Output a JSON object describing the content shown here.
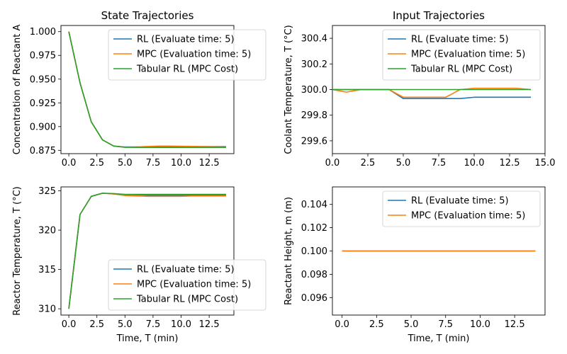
{
  "colors": {
    "rl": "#1f77b4",
    "mpc": "#ff7f0e",
    "tab": "#2ca02c"
  },
  "chart_data": [
    {
      "type": "line",
      "title": "State Trajectories",
      "xlabel": "",
      "ylabel": "Concentration of Reactant A",
      "xlim": [
        -0.7,
        14.7
      ],
      "ylim": [
        0.8715,
        1.0065
      ],
      "xticks": [
        0,
        2.5,
        5,
        7.5,
        10,
        12.5
      ],
      "xtick_labels": [
        "0.0",
        "2.5",
        "5.0",
        "7.5",
        "10.0",
        "12.5"
      ],
      "yticks": [
        0.875,
        0.9,
        0.925,
        0.95,
        0.975,
        1.0
      ],
      "ytick_labels": [
        "0.875",
        "0.900",
        "0.925",
        "0.950",
        "0.975",
        "1.000"
      ],
      "legend": "top-right",
      "x": [
        0,
        1,
        2,
        3,
        4,
        5,
        6,
        7,
        8,
        9,
        10,
        11,
        12,
        13,
        14
      ],
      "series": [
        {
          "name": "RL (Evaluate time: 5)",
          "color": "rl",
          "values": [
            1.0,
            0.946,
            0.905,
            0.886,
            0.8795,
            0.8785,
            0.8785,
            0.8787,
            0.8789,
            0.8789,
            0.8789,
            0.8789,
            0.8789,
            0.8789,
            0.8789
          ]
        },
        {
          "name": "MPC (Evaluation time: 5)",
          "color": "mpc",
          "values": [
            1.0,
            0.946,
            0.905,
            0.886,
            0.8795,
            0.8783,
            0.8785,
            0.879,
            0.8795,
            0.8795,
            0.8793,
            0.8791,
            0.8789,
            0.8787,
            0.8785
          ]
        },
        {
          "name": "Tabular RL (MPC Cost)",
          "color": "tab",
          "values": [
            1.0,
            0.946,
            0.905,
            0.886,
            0.8795,
            0.8782,
            0.8781,
            0.8781,
            0.8781,
            0.8781,
            0.8781,
            0.8781,
            0.8781,
            0.8781,
            0.8781
          ]
        }
      ]
    },
    {
      "type": "line",
      "title": "Input Trajectories",
      "xlabel": "",
      "ylabel": "Coolant Temperature, T (°C)",
      "xlim": [
        0,
        15
      ],
      "ylim": [
        299.5,
        300.5
      ],
      "xticks": [
        0,
        2.5,
        5,
        7.5,
        10,
        12.5,
        15
      ],
      "xtick_labels": [
        "0.0",
        "2.5",
        "5.0",
        "7.5",
        "10.0",
        "12.5",
        "15.0"
      ],
      "yticks": [
        299.6,
        299.8,
        300.0,
        300.2,
        300.4
      ],
      "ytick_labels": [
        "299.6",
        "299.8",
        "300.0",
        "300.2",
        "300.4"
      ],
      "legend": "top-right",
      "x": [
        0,
        1,
        2,
        3,
        4,
        5,
        6,
        7,
        8,
        9,
        10,
        11,
        12,
        13,
        14
      ],
      "series": [
        {
          "name": "RL (Evaluate time: 5)",
          "color": "rl",
          "values": [
            300,
            300,
            300,
            300,
            300,
            299.93,
            299.93,
            299.93,
            299.93,
            299.93,
            299.94,
            299.94,
            299.94,
            299.94,
            299.94
          ]
        },
        {
          "name": "MPC (Evaluation time: 5)",
          "color": "mpc",
          "values": [
            300,
            299.98,
            300,
            300,
            300,
            299.94,
            299.94,
            299.94,
            299.94,
            300,
            300.01,
            300.01,
            300.01,
            300.01,
            300
          ]
        },
        {
          "name": "Tabular RL (MPC Cost)",
          "color": "tab",
          "values": [
            300,
            300,
            300,
            300,
            300,
            300,
            300,
            300,
            300,
            300,
            300,
            300,
            300,
            300,
            300
          ]
        }
      ]
    },
    {
      "type": "line",
      "title": "",
      "xlabel": "Time, T (min)",
      "ylabel": "Reactor Temperature, T (°C)",
      "xlim": [
        -0.7,
        14.7
      ],
      "ylim": [
        309.2,
        325.5
      ],
      "xticks": [
        0,
        2.5,
        5,
        7.5,
        10,
        12.5
      ],
      "xtick_labels": [
        "0.0",
        "2.5",
        "5.0",
        "7.5",
        "10.0",
        "12.5"
      ],
      "yticks": [
        310,
        315,
        320,
        325
      ],
      "ytick_labels": [
        "310",
        "315",
        "320",
        "325"
      ],
      "legend": "bottom-right",
      "x": [
        0,
        1,
        2,
        3,
        4,
        5,
        6,
        7,
        8,
        9,
        10,
        11,
        12,
        13,
        14
      ],
      "series": [
        {
          "name": "RL (Evaluate time: 5)",
          "color": "rl",
          "values": [
            310,
            322,
            324.3,
            324.7,
            324.6,
            324.5,
            324.5,
            324.45,
            324.45,
            324.45,
            324.45,
            324.45,
            324.45,
            324.45,
            324.45
          ]
        },
        {
          "name": "MPC (Evaluation time: 5)",
          "color": "mpc",
          "values": [
            310,
            322,
            324.3,
            324.7,
            324.6,
            324.4,
            324.35,
            324.3,
            324.3,
            324.3,
            324.3,
            324.35,
            324.35,
            324.35,
            324.35
          ]
        },
        {
          "name": "Tabular RL (MPC Cost)",
          "color": "tab",
          "values": [
            310,
            322,
            324.3,
            324.7,
            324.65,
            324.55,
            324.55,
            324.55,
            324.55,
            324.55,
            324.55,
            324.55,
            324.55,
            324.55,
            324.55
          ]
        }
      ]
    },
    {
      "type": "line",
      "title": "",
      "xlabel": "Time, T (min)",
      "ylabel": "Reactant Height, m (m)",
      "xlim": [
        -0.7,
        14.7
      ],
      "ylim": [
        0.0945,
        0.1055
      ],
      "xticks": [
        0,
        2.5,
        5,
        7.5,
        10,
        12.5
      ],
      "xtick_labels": [
        "0.0",
        "2.5",
        "5.0",
        "7.5",
        "10.0",
        "12.5"
      ],
      "yticks": [
        0.096,
        0.098,
        0.1,
        0.102,
        0.104
      ],
      "ytick_labels": [
        "0.096",
        "0.098",
        "0.100",
        "0.102",
        "0.104"
      ],
      "legend": "top-right",
      "x": [
        0,
        1,
        2,
        3,
        4,
        5,
        6,
        7,
        8,
        9,
        10,
        11,
        12,
        13,
        14
      ],
      "series": [
        {
          "name": "RL (Evaluate time: 5)",
          "color": "rl",
          "values": [
            0.1,
            0.1,
            0.1,
            0.1,
            0.1,
            0.1,
            0.1,
            0.1,
            0.1,
            0.1,
            0.1,
            0.1,
            0.1,
            0.1,
            0.1
          ]
        },
        {
          "name": "MPC (Evaluation time: 5)",
          "color": "mpc",
          "values": [
            0.1,
            0.1,
            0.1,
            0.1,
            0.1,
            0.1,
            0.1,
            0.1,
            0.1,
            0.1,
            0.1,
            0.1,
            0.1,
            0.1,
            0.1
          ]
        }
      ]
    }
  ]
}
